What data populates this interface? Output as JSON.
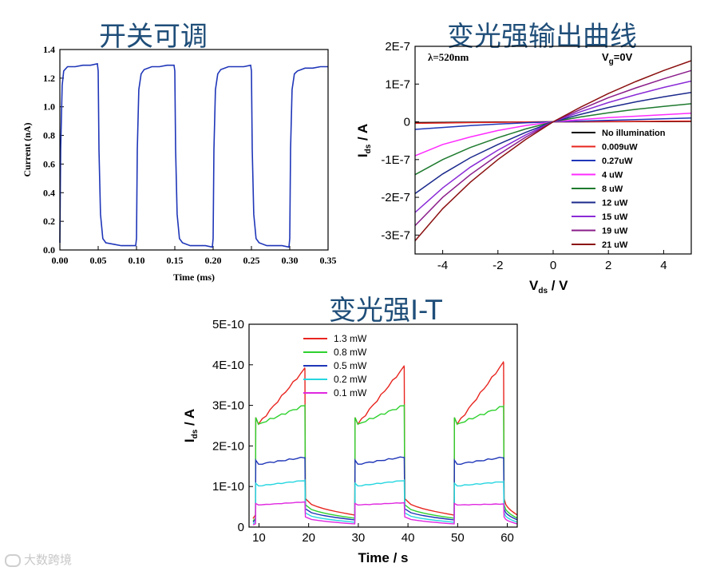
{
  "headings": {
    "switching": "开关可调",
    "output": "变光强输出曲线",
    "it": "变光强I-T"
  },
  "watermark": "大数跨境",
  "chart_data": [
    {
      "id": "switching",
      "type": "line",
      "xlabel": "Time (ms)",
      "ylabel": "Current (nA)",
      "xlim": [
        0,
        0.35
      ],
      "ylim": [
        0,
        1.4
      ],
      "xticks": [
        0.0,
        0.05,
        0.1,
        0.15,
        0.2,
        0.25,
        0.3,
        0.35
      ],
      "xtick_labels": [
        "0.00",
        "0.05",
        "0.10",
        "0.15",
        "0.20",
        "0.25",
        "0.30",
        "0.35"
      ],
      "yticks": [
        0.0,
        0.2,
        0.4,
        0.6,
        0.8,
        1.0,
        1.2,
        1.4
      ],
      "ytick_labels": [
        "0.0",
        "0.2",
        "0.4",
        "0.6",
        "0.8",
        "1.0",
        "1.2",
        "1.4"
      ],
      "color": "#1f36b8",
      "series": [
        {
          "x": [
            0.0,
            0.001,
            0.003,
            0.005,
            0.01,
            0.02,
            0.03,
            0.04,
            0.049,
            0.05,
            0.051,
            0.053,
            0.056,
            0.06,
            0.07,
            0.08,
            0.09,
            0.099,
            0.1,
            0.101,
            0.103,
            0.106,
            0.11,
            0.12,
            0.13,
            0.14,
            0.149,
            0.15,
            0.151,
            0.153,
            0.156,
            0.16,
            0.17,
            0.18,
            0.19,
            0.199,
            0.2,
            0.201,
            0.203,
            0.206,
            0.21,
            0.22,
            0.23,
            0.24,
            0.249,
            0.25,
            0.251,
            0.253,
            0.256,
            0.26,
            0.27,
            0.28,
            0.29,
            0.299,
            0.3,
            0.301,
            0.303,
            0.306,
            0.31,
            0.32,
            0.33,
            0.34,
            0.35
          ],
          "y": [
            0.05,
            0.7,
            1.15,
            1.25,
            1.28,
            1.28,
            1.29,
            1.29,
            1.3,
            1.25,
            0.7,
            0.25,
            0.08,
            0.05,
            0.04,
            0.03,
            0.03,
            0.03,
            0.08,
            0.7,
            1.12,
            1.23,
            1.26,
            1.28,
            1.28,
            1.29,
            1.29,
            1.25,
            0.7,
            0.25,
            0.08,
            0.05,
            0.03,
            0.03,
            0.03,
            0.02,
            0.08,
            0.7,
            1.12,
            1.23,
            1.26,
            1.28,
            1.28,
            1.28,
            1.29,
            1.25,
            0.7,
            0.25,
            0.08,
            0.05,
            0.03,
            0.03,
            0.03,
            0.02,
            0.08,
            0.7,
            1.12,
            1.23,
            1.25,
            1.27,
            1.27,
            1.28,
            1.28
          ]
        }
      ]
    },
    {
      "id": "output",
      "type": "line",
      "xlabel_main": "V",
      "xlabel_sub": "ds",
      "xlabel_rest": " / V",
      "ylabel_main": "I",
      "ylabel_sub": "ds",
      "ylabel_rest": " / A",
      "xlim": [
        -5,
        5
      ],
      "ylim": [
        -3.5e-07,
        2e-07
      ],
      "xticks": [
        -4,
        -2,
        0,
        2,
        4
      ],
      "xtick_labels": [
        "-4",
        "-2",
        "0",
        "2",
        "4"
      ],
      "yticks": [
        -3e-07,
        -2e-07,
        -1e-07,
        0,
        1e-07,
        2e-07
      ],
      "ytick_labels": [
        "-3E-7",
        "-2E-7",
        "-1E-7",
        "0",
        "1E-7",
        "2E-7"
      ],
      "annotation_wavelength": "λ=520nm",
      "annotation_vg_main": "V",
      "annotation_vg_sub": "g",
      "annotation_vg_rest": "=0V",
      "x": [
        -5,
        -4,
        -3,
        -2,
        -1,
        0,
        1,
        2,
        3,
        4,
        5
      ],
      "series": [
        {
          "name": "No illumination",
          "color": "#000000",
          "y": [
            -2e-09,
            -1.5e-09,
            -1e-09,
            -6e-10,
            -3e-10,
            0,
            2e-10,
            4e-10,
            6e-10,
            8e-10,
            1e-09
          ]
        },
        {
          "name": "0.009uW",
          "color": "#e8251f",
          "y": [
            -4e-09,
            -3e-09,
            -2e-09,
            -1.2e-09,
            -5e-10,
            0,
            4e-10,
            8e-10,
            1.2e-09,
            1.6e-09,
            2e-09
          ]
        },
        {
          "name": "0.27uW",
          "color": "#1f36b8",
          "y": [
            -2e-08,
            -1.5e-08,
            -1e-08,
            -6e-09,
            -2.5e-09,
            0,
            2e-09,
            4e-09,
            6e-09,
            8e-09,
            1e-08
          ]
        },
        {
          "name": "4 uW",
          "color": "#ff2bff",
          "y": [
            -9e-08,
            -6e-08,
            -4e-08,
            -2.3e-08,
            -1e-08,
            0,
            6e-09,
            1.1e-08,
            1.5e-08,
            1.9e-08,
            2.3e-08
          ]
        },
        {
          "name": "8 uW",
          "color": "#1e7a2e",
          "y": [
            -1.4e-07,
            -1e-07,
            -6.8e-08,
            -4.2e-08,
            -1.9e-08,
            0,
            1.3e-08,
            2.4e-08,
            3.3e-08,
            4.1e-08,
            4.8e-08
          ]
        },
        {
          "name": "12 uW",
          "color": "#1b2a8c",
          "y": [
            -1.9e-07,
            -1.38e-07,
            -9.5e-08,
            -6e-08,
            -2.8e-08,
            0,
            2e-08,
            3.8e-08,
            5.3e-08,
            6.6e-08,
            7.8e-08
          ]
        },
        {
          "name": "15 uW",
          "color": "#8a2bd6",
          "y": [
            -2.4e-07,
            -1.75e-07,
            -1.2e-07,
            -7.5e-08,
            -3.5e-08,
            0,
            2.7e-08,
            5.1e-08,
            7.2e-08,
            9.1e-08,
            1.08e-07
          ]
        },
        {
          "name": "19 uW",
          "color": "#8a1d8a",
          "y": [
            -2.75e-07,
            -2e-07,
            -1.4e-07,
            -8.8e-08,
            -4.1e-08,
            0,
            3.3e-08,
            6.4e-08,
            9e-08,
            1.14e-07,
            1.36e-07
          ]
        },
        {
          "name": "21 uW",
          "color": "#8b1010",
          "y": [
            -3.15e-07,
            -2.3e-07,
            -1.6e-07,
            -1e-07,
            -4.7e-08,
            0,
            3.9e-08,
            7.5e-08,
            1.07e-07,
            1.36e-07,
            1.62e-07
          ]
        }
      ]
    },
    {
      "id": "it",
      "type": "line",
      "xlabel": "Time / s",
      "ylabel_main": "I",
      "ylabel_sub": "ds",
      "ylabel_rest": " / A",
      "xlim": [
        8,
        62
      ],
      "ylim": [
        0,
        5e-10
      ],
      "xticks": [
        10,
        20,
        30,
        40,
        50,
        60
      ],
      "xtick_labels": [
        "10",
        "20",
        "30",
        "40",
        "50",
        "60"
      ],
      "yticks": [
        0,
        1e-10,
        2e-10,
        3e-10,
        4e-10,
        5e-10
      ],
      "ytick_labels": [
        "0",
        "1E-10",
        "2E-10",
        "3E-10",
        "4E-10",
        "5E-10"
      ],
      "on_periods": [
        [
          9.3,
          19.3
        ],
        [
          29.3,
          39.3
        ],
        [
          49.3,
          59.3
        ]
      ],
      "series": [
        {
          "name": "1.3 mW",
          "color": "#e8251f",
          "onset": 2.7e-10,
          "end_values": [
            3.9e-10,
            3.95e-10,
            4.05e-10
          ],
          "dark": 7e-11,
          "dark_end": 3e-11
        },
        {
          "name": "0.8 mW",
          "color": "#2ed12e",
          "onset": 2.7e-10,
          "end_values": [
            3e-10,
            3e-10,
            2.98e-10
          ],
          "dark": 5.5e-11,
          "dark_end": 2.2e-11
        },
        {
          "name": "0.5 mW",
          "color": "#1f36b8",
          "onset": 1.65e-10,
          "end_values": [
            1.72e-10,
            1.73e-10,
            1.72e-10
          ],
          "dark": 4.5e-11,
          "dark_end": 1.8e-11
        },
        {
          "name": "0.2 mW",
          "color": "#26d6e0",
          "onset": 1.08e-10,
          "end_values": [
            1.15e-10,
            1.15e-10,
            1.12e-10
          ],
          "dark": 3.5e-11,
          "dark_end": 1.2e-11
        },
        {
          "name": "0.1 mW",
          "color": "#e028e0",
          "onset": 5.8e-11,
          "end_values": [
            6.2e-11,
            6e-11,
            5.7e-11
          ],
          "dark": 2.5e-11,
          "dark_end": 8e-12
        }
      ]
    }
  ]
}
